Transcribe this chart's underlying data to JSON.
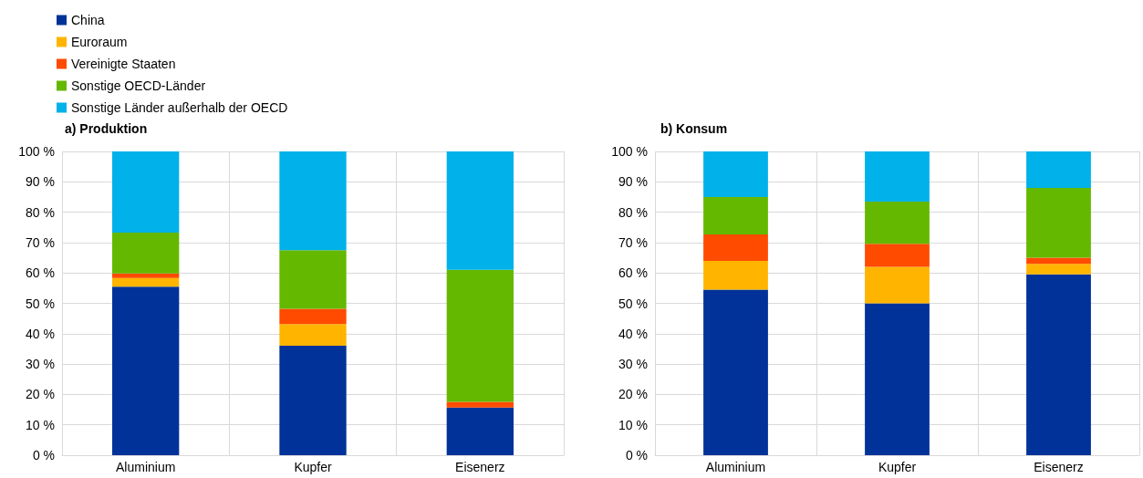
{
  "chart_data": [
    {
      "type": "bar",
      "title": "a) Produktion",
      "stacked": true,
      "grid": true,
      "legend": "top left",
      "categories": [
        "Aluminium",
        "Kupfer",
        "Eisenerz"
      ],
      "series": [
        {
          "name": "China",
          "color": "#003299",
          "values": [
            55.5,
            36,
            15.7
          ]
        },
        {
          "name": "Euroraum",
          "color": "#ffb400",
          "values": [
            2.8,
            7.2,
            0
          ]
        },
        {
          "name": "Vereinigte Staaten",
          "color": "#ff4b00",
          "values": [
            1.5,
            5,
            1.9
          ]
        },
        {
          "name": "Sonstige OECD-Länder",
          "color": "#65b800",
          "values": [
            13.5,
            19.3,
            43.4
          ]
        },
        {
          "name": "Sonstige Länder außerhalb der OECD",
          "color": "#00b1ea",
          "values": [
            26.7,
            32.5,
            39
          ]
        }
      ],
      "ylim": [
        0,
        100
      ],
      "yticks": [
        {
          "value": 0,
          "label": "0 %"
        },
        {
          "value": 10,
          "label": "10 %"
        },
        {
          "value": 20,
          "label": "20 %"
        },
        {
          "value": 30,
          "label": "30 %"
        },
        {
          "value": 40,
          "label": "40 %"
        },
        {
          "value": 50,
          "label": "50 %"
        },
        {
          "value": 60,
          "label": "60 %"
        },
        {
          "value": 70,
          "label": "70 %"
        },
        {
          "value": 80,
          "label": "80 %"
        },
        {
          "value": 90,
          "label": "90 %"
        },
        {
          "value": 100,
          "label": "100 %"
        }
      ]
    },
    {
      "type": "bar",
      "title": "b) Konsum",
      "stacked": true,
      "grid": true,
      "categories": [
        "Aluminium",
        "Kupfer",
        "Eisenerz"
      ],
      "series": [
        {
          "color": "#003299",
          "values": [
            54.5,
            50,
            59.5
          ]
        },
        {
          "color": "#ffb400",
          "values": [
            9.5,
            12,
            3.5
          ]
        },
        {
          "color": "#ff4b00",
          "values": [
            8.7,
            7.6,
            2
          ]
        },
        {
          "color": "#65b800",
          "values": [
            12.3,
            13.9,
            23
          ]
        },
        {
          "color": "#00b1ea",
          "values": [
            15,
            16.5,
            12
          ]
        }
      ],
      "ylim": [
        0,
        100
      ],
      "yticks": [
        {
          "value": 0,
          "label": "0 %"
        },
        {
          "value": 10,
          "label": "10 %"
        },
        {
          "value": 20,
          "label": "20 %"
        },
        {
          "value": 30,
          "label": "30 %"
        },
        {
          "value": 40,
          "label": "40 %"
        },
        {
          "value": 50,
          "label": "50 %"
        },
        {
          "value": 60,
          "label": "60 %"
        },
        {
          "value": 70,
          "label": "70 %"
        },
        {
          "value": 80,
          "label": "80 %"
        },
        {
          "value": 90,
          "label": "90 %"
        },
        {
          "value": 100,
          "label": "100 %"
        }
      ]
    }
  ]
}
